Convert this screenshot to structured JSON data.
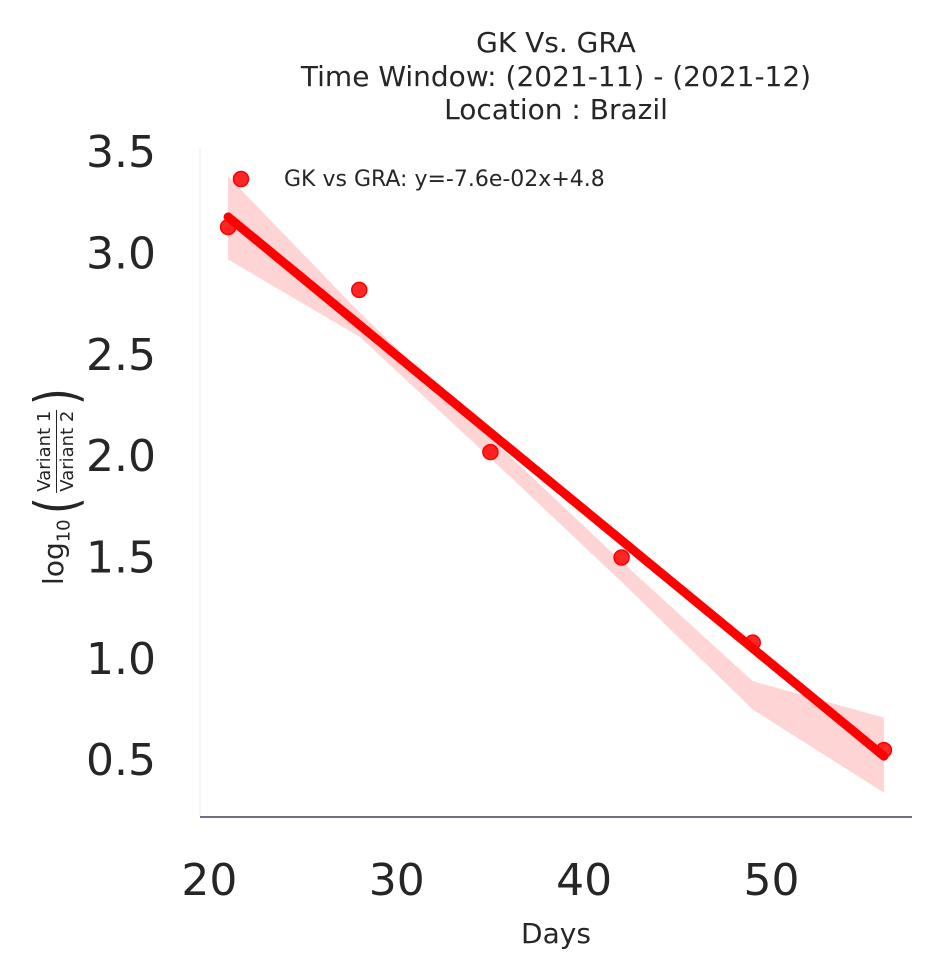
{
  "chart_data": {
    "type": "scatter",
    "title_lines": [
      "GK Vs. GRA",
      "Time Window: (2021-11) - (2021-12)",
      "Location : Brazil"
    ],
    "xlabel": "Days",
    "ylabel": {
      "prefix": "log",
      "subscript": "10",
      "numerator": "Variant 1",
      "denominator": "Variant 2"
    },
    "xlim": [
      19.5,
      57.5
    ],
    "ylim": [
      0.22,
      3.52
    ],
    "xticks": [
      20,
      30,
      40,
      50
    ],
    "xtick_labels": [
      "20",
      "30",
      "40",
      "50"
    ],
    "yticks": [
      0.5,
      1.0,
      1.5,
      2.0,
      2.5,
      3.0,
      3.5
    ],
    "ytick_labels": [
      "0.5",
      "1.0",
      "1.5",
      "2.0",
      "2.5",
      "3.0",
      "3.5"
    ],
    "grid": false,
    "legend_position": "top-left",
    "series": [
      {
        "name": "GK vs GRA: y=-7.6e-02x+4.8",
        "color": "#ff0000",
        "points": [
          {
            "x": 21,
            "y": 3.13
          },
          {
            "x": 28,
            "y": 2.82
          },
          {
            "x": 35,
            "y": 2.02
          },
          {
            "x": 42,
            "y": 1.5
          },
          {
            "x": 49,
            "y": 1.08
          },
          {
            "x": 56,
            "y": 0.55
          }
        ],
        "fit_line": {
          "x": [
            21,
            56
          ],
          "y": [
            3.18,
            0.52
          ]
        },
        "confidence_band": {
          "x": [
            21,
            28,
            35,
            42,
            49,
            56
          ],
          "upper": [
            3.38,
            2.71,
            2.09,
            1.48,
            0.89,
            0.71
          ],
          "lower": [
            2.97,
            2.59,
            1.99,
            1.38,
            0.75,
            0.34
          ]
        },
        "band_color": "#ffcccc"
      }
    ]
  }
}
